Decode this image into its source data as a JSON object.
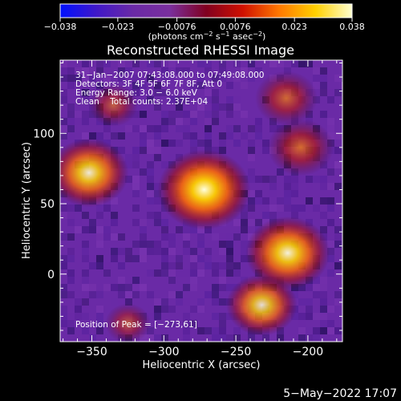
{
  "chart_data": {
    "type": "heatmap",
    "title": "Reconstructed RHESSI Image",
    "xlabel": "Heliocentric X (arcsec)",
    "ylabel": "Heliocentric Y (arcsec)",
    "xlim": [
      -372,
      -176
    ],
    "ylim": [
      -48,
      152
    ],
    "x_ticks": [
      -350,
      -300,
      -250,
      -200
    ],
    "x_tick_labels": [
      "−350",
      "−300",
      "−250",
      "−200"
    ],
    "y_ticks": [
      0,
      50,
      100
    ],
    "y_tick_labels": [
      "0",
      "50",
      "100"
    ],
    "colorbar": {
      "range": [
        -0.038,
        0.038
      ],
      "ticks": [
        -0.038,
        -0.023,
        -0.0076,
        0.0076,
        0.023,
        0.038
      ],
      "tick_labels": [
        "−0.038",
        "−0.023",
        "−0.0076",
        "0.0076",
        "0.023",
        "0.038"
      ],
      "units_text": "(photons cm",
      "units_exp1": "−2",
      "units_mid": " s",
      "units_exp2": "−1",
      "units_end": " asec",
      "units_exp3": "−2",
      "units_close": ")",
      "colors": [
        "#0010ff",
        "#4018c8",
        "#6a2aa6",
        "#7a2f9e",
        "#800020",
        "#d01000",
        "#ff7800",
        "#ffd000",
        "#ffffd0"
      ]
    },
    "annotations": [
      "31−Jan−2007 07:43:08.000 to 07:49:08.000",
      "Detectors: 3F 4F 5F 6F 7F 8F, Att 0",
      "Energy Range: 3.0 − 6.0 keV",
      "Clean    Total counts: 2.37E+04"
    ],
    "peak_label": "Position of Peak = [−273,61]",
    "peak_position": [
      -273,
      61
    ],
    "sources": [
      {
        "x": -272,
        "y": 60,
        "value": 0.038
      },
      {
        "x": -352,
        "y": 72,
        "value": 0.03
      },
      {
        "x": -214,
        "y": 15,
        "value": 0.033
      },
      {
        "x": -232,
        "y": -22,
        "value": 0.025
      },
      {
        "x": -205,
        "y": 90,
        "value": 0.022
      },
      {
        "x": -215,
        "y": 125,
        "value": 0.02
      },
      {
        "x": -335,
        "y": 120,
        "value": 0.012
      },
      {
        "x": -325,
        "y": -35,
        "value": 0.01
      }
    ]
  },
  "footer_date": "5−May−2022 17:07"
}
